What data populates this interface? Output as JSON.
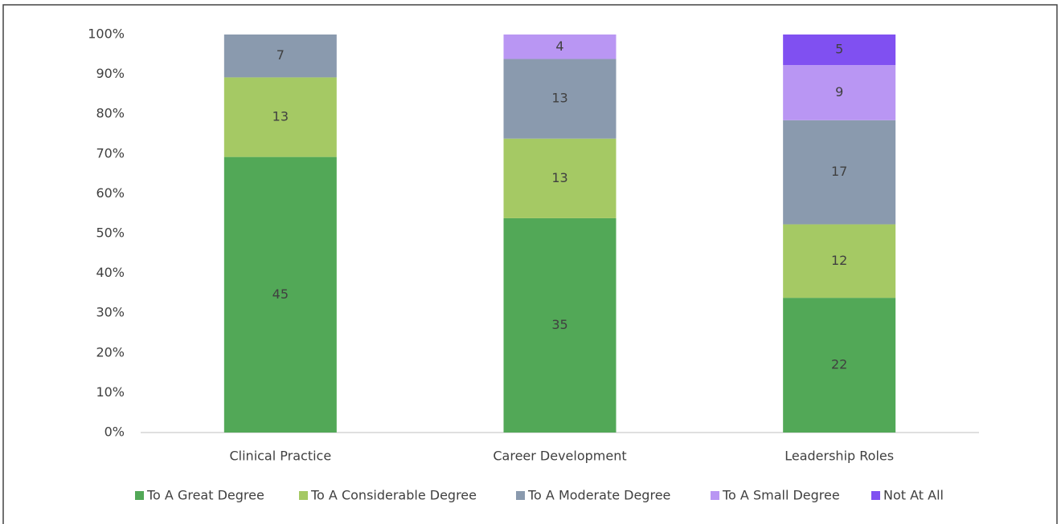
{
  "chart_data": {
    "type": "bar",
    "stacking": "percent",
    "categories": [
      "Clinical Practice",
      "Career Development",
      "Leadership Roles"
    ],
    "series": [
      {
        "name": "To A Great Degree",
        "color": "#52a857",
        "values": [
          45,
          35,
          22
        ]
      },
      {
        "name": "To A Considerable Degree",
        "color": "#a5c964",
        "values": [
          13,
          13,
          12
        ]
      },
      {
        "name": "To A Moderate Degree",
        "color": "#8a9aae",
        "values": [
          7,
          13,
          17
        ]
      },
      {
        "name": "To A Small Degree",
        "color": "#b996f3",
        "values": [
          null,
          4,
          9
        ]
      },
      {
        "name": "Not At All",
        "color": "#8050f1",
        "values": [
          null,
          null,
          5
        ]
      }
    ],
    "ylim": [
      0,
      100
    ],
    "yticks": [
      {
        "value": 0,
        "label": "0%"
      },
      {
        "value": 10,
        "label": "10%"
      },
      {
        "value": 20,
        "label": "20%"
      },
      {
        "value": 30,
        "label": "30%"
      },
      {
        "value": 40,
        "label": "40%"
      },
      {
        "value": 50,
        "label": "50%"
      },
      {
        "value": 60,
        "label": "60%"
      },
      {
        "value": 70,
        "label": "70%"
      },
      {
        "value": 80,
        "label": "80%"
      },
      {
        "value": 90,
        "label": "90%"
      },
      {
        "value": 100,
        "label": "100%"
      }
    ],
    "legend": "bottom",
    "grid": false
  }
}
